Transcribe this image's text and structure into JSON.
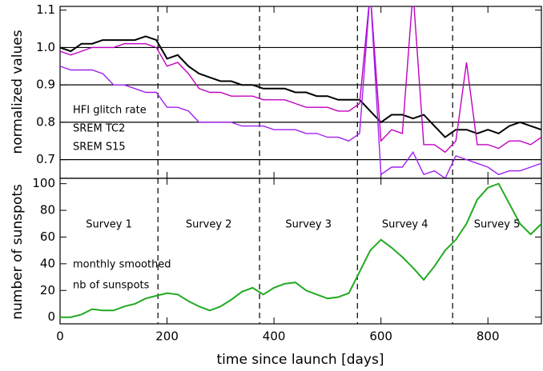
{
  "chart_data": [
    {
      "type": "line",
      "ylabel": "normalized values",
      "x": [
        0,
        20,
        40,
        60,
        80,
        100,
        120,
        140,
        160,
        180,
        200,
        220,
        240,
        260,
        280,
        300,
        320,
        340,
        360,
        380,
        400,
        420,
        440,
        460,
        480,
        500,
        520,
        540,
        560,
        580,
        600,
        620,
        640,
        660,
        680,
        700,
        720,
        740,
        760,
        780,
        800,
        820,
        840,
        860,
        880,
        900
      ],
      "series": [
        {
          "name": "HFI glitch rate",
          "color": "#000000",
          "values": [
            1.0,
            0.99,
            1.01,
            1.01,
            1.02,
            1.02,
            1.02,
            1.02,
            1.03,
            1.02,
            0.97,
            0.98,
            0.95,
            0.93,
            0.92,
            0.91,
            0.91,
            0.9,
            0.9,
            0.89,
            0.89,
            0.89,
            0.88,
            0.88,
            0.87,
            0.87,
            0.86,
            0.86,
            0.86,
            0.83,
            0.8,
            0.82,
            0.82,
            0.81,
            0.82,
            0.79,
            0.76,
            0.78,
            0.78,
            0.77,
            0.78,
            0.77,
            0.79,
            0.8,
            0.79,
            0.78
          ]
        },
        {
          "name": "SREM TC2",
          "color": "#c000c0",
          "values": [
            0.99,
            0.98,
            0.99,
            1.0,
            1.0,
            1.0,
            1.01,
            1.01,
            1.01,
            1.0,
            0.95,
            0.96,
            0.93,
            0.89,
            0.88,
            0.88,
            0.87,
            0.87,
            0.87,
            0.86,
            0.86,
            0.86,
            0.85,
            0.84,
            0.84,
            0.84,
            0.83,
            0.83,
            0.85,
            1.15,
            0.75,
            0.78,
            0.77,
            1.15,
            0.74,
            0.74,
            0.72,
            0.75,
            0.96,
            0.74,
            0.74,
            0.73,
            0.75,
            0.75,
            0.74,
            0.76
          ]
        },
        {
          "name": "SREM S15",
          "color": "#a020f0",
          "values": [
            0.95,
            0.94,
            0.94,
            0.94,
            0.93,
            0.9,
            0.9,
            0.89,
            0.88,
            0.88,
            0.84,
            0.84,
            0.83,
            0.8,
            0.8,
            0.8,
            0.8,
            0.79,
            0.79,
            0.79,
            0.78,
            0.78,
            0.78,
            0.77,
            0.77,
            0.76,
            0.76,
            0.75,
            0.77,
            1.15,
            0.66,
            0.68,
            0.68,
            0.72,
            0.66,
            0.67,
            0.65,
            0.71,
            0.7,
            0.69,
            0.68,
            0.66,
            0.67,
            0.67,
            0.68,
            0.69
          ]
        }
      ],
      "xlim": [
        0,
        900
      ],
      "ylim": [
        0.65,
        1.11
      ],
      "yticks": [
        0.7,
        0.8,
        0.9,
        {
          "value": 1.0,
          "label": "1.0"
        },
        1.1
      ],
      "hlines": [
        0.7,
        0.8,
        0.9,
        1.0
      ],
      "vlines": [
        183,
        373,
        556,
        734
      ]
    },
    {
      "type": "line",
      "xlabel": "time since launch [days]",
      "ylabel": "number of sunspots",
      "x": [
        0,
        20,
        40,
        60,
        80,
        100,
        120,
        140,
        160,
        180,
        200,
        220,
        240,
        260,
        280,
        300,
        320,
        340,
        360,
        380,
        400,
        420,
        440,
        460,
        480,
        500,
        520,
        540,
        560,
        580,
        600,
        620,
        640,
        660,
        680,
        700,
        720,
        740,
        760,
        780,
        800,
        820,
        840,
        860,
        880,
        900
      ],
      "series": [
        {
          "color": "#22aa22",
          "values": [
            0,
            0,
            2,
            6,
            5,
            5,
            8,
            10,
            14,
            16,
            18,
            17,
            12,
            8,
            5,
            8,
            13,
            19,
            22,
            17,
            22,
            25,
            26,
            20,
            17,
            14,
            15,
            18,
            34,
            50,
            58,
            52,
            45,
            37,
            28,
            38,
            50,
            58,
            70,
            88,
            97,
            100,
            85,
            70,
            62,
            70
          ]
        }
      ],
      "annotations": [
        "monthly smoothed",
        "nb of sunspots"
      ],
      "annotation_color": "#22aa22",
      "xlim": [
        0,
        900
      ],
      "xticks": [
        0,
        200,
        400,
        600,
        800
      ],
      "ylim": [
        -5,
        104
      ],
      "yticks": [
        0,
        20,
        40,
        60,
        80,
        100
      ],
      "vlines": [
        183,
        373,
        556,
        734
      ],
      "surveys": [
        "Survey 1",
        "Survey 2",
        "Survey 3",
        "Survey 4",
        "Survey 5"
      ]
    }
  ]
}
